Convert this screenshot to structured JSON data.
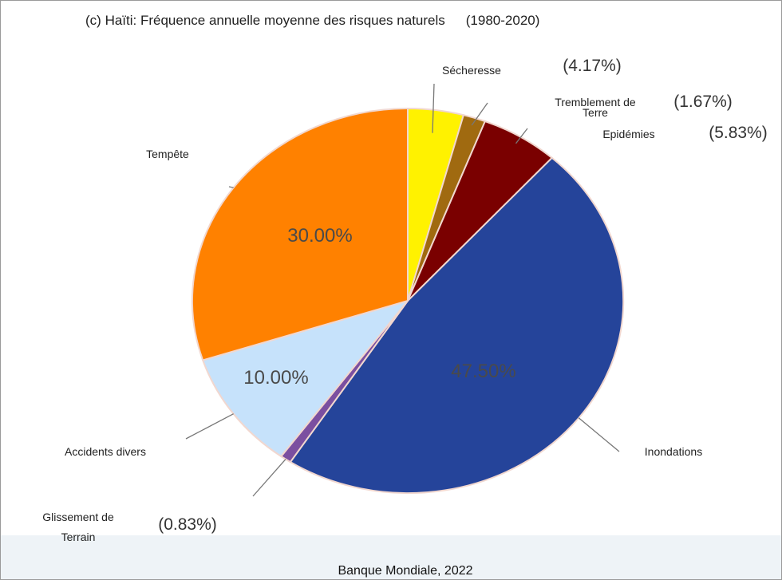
{
  "chart_data": {
    "type": "pie",
    "panel_label": "(c)",
    "title": "Haïti: Fréquence annuelle moyenne des risques naturels",
    "period": "(1980-2020)",
    "source": "Banque Mondiale, 2022",
    "slices": [
      {
        "label": "Sécheresse",
        "value": 4.17,
        "display": "(4.17%)",
        "color": "#fff200"
      },
      {
        "label": "Tremblement de Terre",
        "label_lines": [
          "Tremblement de",
          "Terre"
        ],
        "value": 1.67,
        "display": "(1.67%)",
        "color": "#a06a10"
      },
      {
        "label": "Epidémies",
        "value": 5.83,
        "display": "(5.83%)",
        "color": "#7a0000"
      },
      {
        "label": "Inondations",
        "value": 47.5,
        "display": "47.50%",
        "color": "#25449a"
      },
      {
        "label": "Glissement de Terrain",
        "label_lines": [
          "Glissement de",
          "Terrain"
        ],
        "value": 0.83,
        "display": "(0.83%)",
        "color": "#7b4fa0"
      },
      {
        "label": "Accidents divers",
        "value": 10.0,
        "display": "10.00%",
        "color": "#c6e2fb"
      },
      {
        "label": "Tempête",
        "value": 30.0,
        "display": "30.00%",
        "color": "#ff8100"
      }
    ]
  }
}
